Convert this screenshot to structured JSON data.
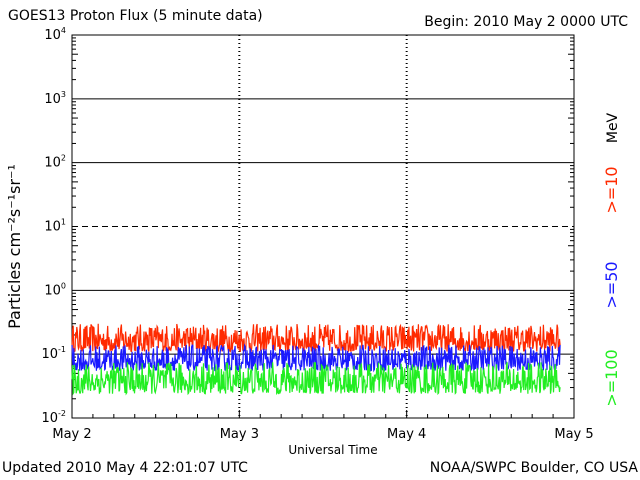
{
  "header": {
    "title": "GOES13 Proton Flux (5 minute data)",
    "begin": "Begin: 2010 May 2 0000 UTC"
  },
  "footer": {
    "updated": "Updated 2010 May  4 22:01:07 UTC",
    "credit": "NOAA/SWPC Boulder, CO USA"
  },
  "chart_data": {
    "type": "line",
    "title": "GOES13 Proton Flux (5 minute data)",
    "xlabel": "Universal Time",
    "ylabel": "Particles cm⁻²s⁻¹sr⁻¹",
    "yscale": "log",
    "ylim": [
      0.01,
      10000
    ],
    "xlim": [
      "2010-05-02",
      "2010-05-05"
    ],
    "x_ticks": [
      "May 2",
      "May 3",
      "May 4",
      "May 5"
    ],
    "y_ticks": [
      {
        "base": "10",
        "exp": "-2"
      },
      {
        "base": "10",
        "exp": "-1"
      },
      {
        "base": "10",
        "exp": "0"
      },
      {
        "base": "10",
        "exp": "1"
      },
      {
        "base": "10",
        "exp": "2"
      },
      {
        "base": "10",
        "exp": "3"
      },
      {
        "base": "10",
        "exp": "4"
      }
    ],
    "grid": "horizontal at each decade (10¹ dashed), dashed vertical at day boundaries",
    "legend": {
      "placement": "right, rotated",
      "unit": "MeV",
      "entries": [
        {
          "label": ">=10",
          "color": "#ff2a00"
        },
        {
          "label": ">=50",
          "color": "#1a1aff"
        },
        {
          "label": ">=100",
          "color": "#22ee22"
        }
      ]
    },
    "series": [
      {
        "name": ">=10",
        "color": "#ff2a00",
        "typical_low": 0.11,
        "typical_high": 0.3
      },
      {
        "name": ">=50",
        "color": "#1a1aff",
        "typical_low": 0.055,
        "typical_high": 0.14
      },
      {
        "name": ">=100",
        "color": "#22ee22",
        "typical_low": 0.024,
        "typical_high": 0.075
      }
    ],
    "data_extent": [
      "2010-05-02 00:00",
      "2010-05-04 22:00"
    ]
  }
}
